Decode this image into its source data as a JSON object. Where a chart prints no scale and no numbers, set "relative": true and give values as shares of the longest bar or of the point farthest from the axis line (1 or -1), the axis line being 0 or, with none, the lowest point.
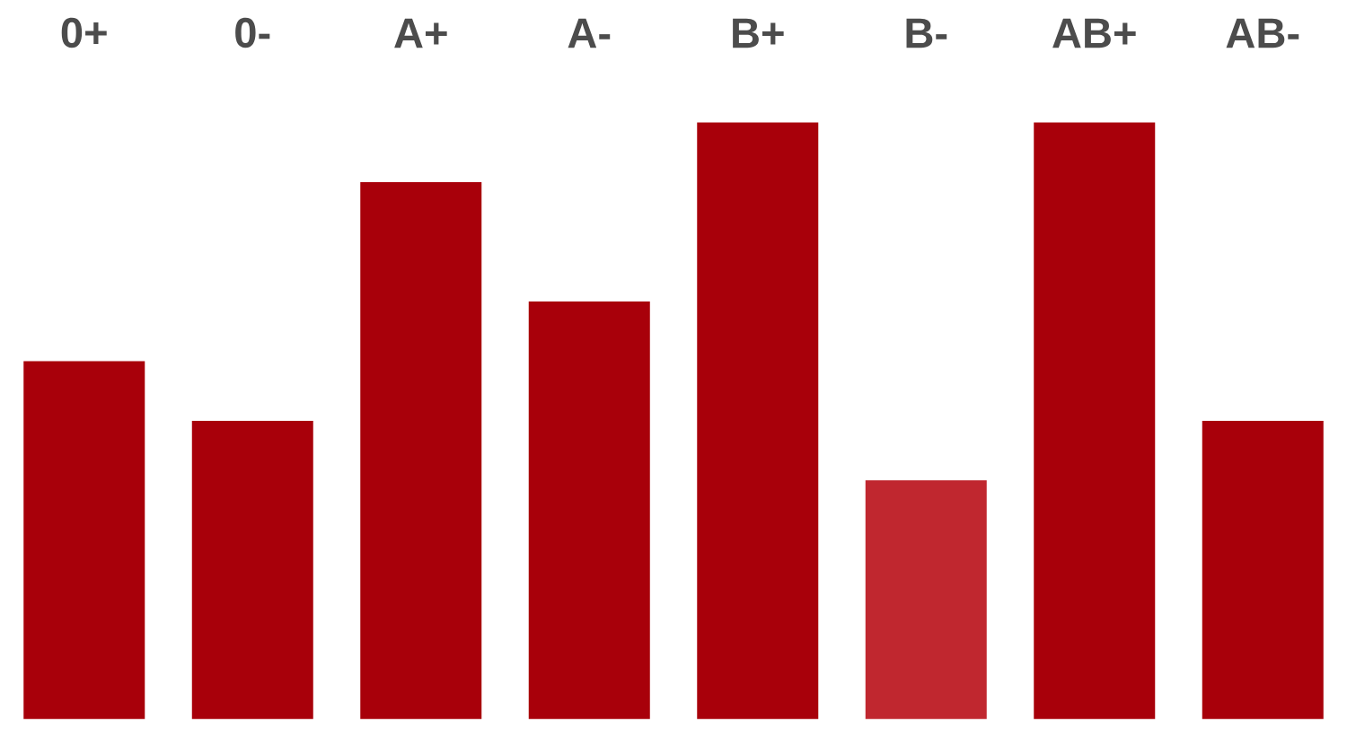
{
  "chart_data": {
    "type": "bar",
    "relative": true,
    "categories": [
      "0+",
      "0-",
      "A+",
      "A-",
      "B+",
      "B-",
      "AB+",
      "AB-"
    ],
    "values": [
      0.6,
      0.5,
      0.9,
      0.7,
      1,
      0.4,
      1,
      0.5
    ],
    "colors": [
      "#a8000a",
      "#a8000a",
      "#a8000a",
      "#a8000a",
      "#a8000a",
      "#c0272f",
      "#a8000a",
      "#a8000a"
    ]
  }
}
